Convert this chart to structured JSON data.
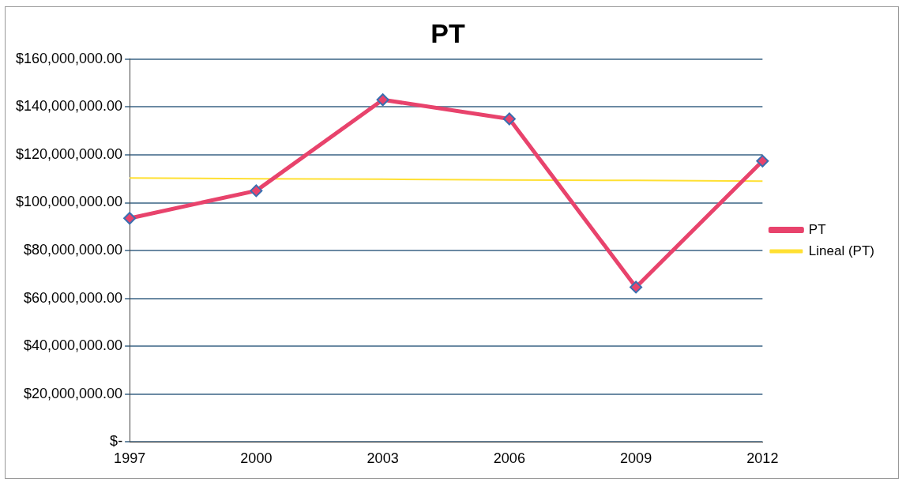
{
  "chart_data": {
    "type": "line",
    "title": "PT",
    "categories": [
      "1997",
      "2000",
      "2003",
      "2006",
      "2009",
      "2012"
    ],
    "series": [
      {
        "name": "PT",
        "color": "#e8436c",
        "values": [
          93500000,
          105000000,
          143000000,
          135000000,
          64700000,
          117400000
        ],
        "marker": "diamond"
      },
      {
        "name": "Lineal (PT)",
        "color": "#ffe033",
        "values": [
          110300000,
          110000000,
          109800000,
          109500000,
          109300000,
          109000000
        ],
        "marker": "none"
      }
    ],
    "ylim": [
      0,
      160000000
    ],
    "yticks": [
      {
        "value": 0,
        "label": "$-"
      },
      {
        "value": 20000000,
        "label": "$20,000,000.00"
      },
      {
        "value": 40000000,
        "label": "$40,000,000.00"
      },
      {
        "value": 60000000,
        "label": "$60,000,000.00"
      },
      {
        "value": 80000000,
        "label": "$80,000,000.00"
      },
      {
        "value": 100000000,
        "label": "$100,000,000.00"
      },
      {
        "value": 120000000,
        "label": "$120,000,000.00"
      },
      {
        "value": 140000000,
        "label": "$140,000,000.00"
      },
      {
        "value": 160000000,
        "label": "$160,000,000.00"
      }
    ],
    "grid": "y",
    "legend": "right"
  }
}
